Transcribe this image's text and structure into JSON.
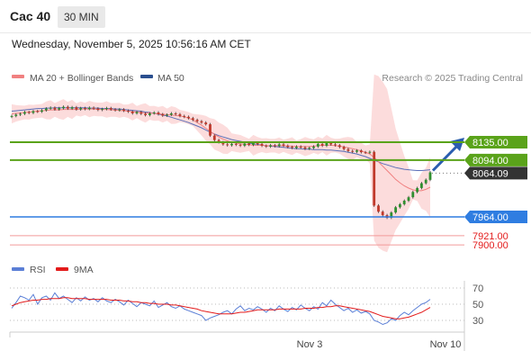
{
  "header": {
    "title": "Cac 40",
    "interval": "30 MIN",
    "datetime": "Wednesday, November 5, 2025 10:56:16 AM CET"
  },
  "legend": {
    "ma20_label": "MA 20 + Bollinger Bands",
    "ma50_label": "MA 50",
    "copyright": "Research © 2025 Trading Central",
    "rsi_label": "RSI",
    "rsi_ma_label": "9MA"
  },
  "colors": {
    "green_level": "#5aa31a",
    "blue_level": "#2f7de1",
    "red_level": "#e31b1b",
    "current_price_bg": "#333333",
    "band_fill": "#fbd6d6",
    "ma20": "#f08080",
    "ma50": "#5b6fb8",
    "candle_up": "#2f8f2f",
    "candle_down": "#c0392b",
    "arrow": "#2a5db0",
    "rsi_line": "#5b7fd6",
    "rsi_ma_line": "#e31b1b"
  },
  "chart_data": [
    {
      "type": "line",
      "subtype": "candlestick",
      "title": "Cac 40",
      "ylim": [
        7880,
        8250
      ],
      "x_tick_labels": [
        "Nov 3",
        "Nov 10"
      ],
      "price_levels": [
        {
          "value": 8135.0,
          "label": "8135.00",
          "kind": "resistance"
        },
        {
          "value": 8094.0,
          "label": "8094.00",
          "kind": "resistance"
        },
        {
          "value": 8064.09,
          "label": "8064.09",
          "kind": "current"
        },
        {
          "value": 7964.0,
          "label": "7964.00",
          "kind": "pivot"
        },
        {
          "value": 7921.0,
          "label": "7921.00",
          "kind": "support"
        },
        {
          "value": 7900.0,
          "label": "7900.00",
          "kind": "support"
        }
      ],
      "series": [
        {
          "name": "MA 20 + Bollinger Bands"
        },
        {
          "name": "MA 50"
        }
      ],
      "close": [
        8195,
        8198,
        8200,
        8204,
        8202,
        8206,
        8205,
        8208,
        8212,
        8214,
        8210,
        8213,
        8216,
        8212,
        8215,
        8210,
        8213,
        8211,
        8214,
        8212,
        8209,
        8211,
        8213,
        8210,
        8208,
        8210,
        8207,
        8205,
        8201,
        8204,
        8200,
        8197,
        8201,
        8203,
        8199,
        8196,
        8198,
        8201,
        8199,
        8195,
        8193,
        8190,
        8186,
        8183,
        8180,
        8176,
        8150,
        8140,
        8135,
        8130,
        8128,
        8131,
        8129,
        8127,
        8132,
        8129,
        8134,
        8131,
        8127,
        8125,
        8128,
        8126,
        8130,
        8127,
        8124,
        8122,
        8125,
        8123,
        8120,
        8122,
        8125,
        8131,
        8127,
        8134,
        8130,
        8128,
        8124,
        8119,
        8115,
        8113,
        8116,
        8112,
        8111,
        8113,
        7990,
        7976,
        7968,
        7962,
        7974,
        7986,
        7993,
        8001,
        8009,
        8021,
        8030,
        8041,
        8049,
        8066
      ],
      "ma20": [
        8200,
        8201,
        8202,
        8203,
        8204,
        8205,
        8206,
        8207,
        8208,
        8209,
        8209,
        8209,
        8210,
        8210,
        8210,
        8210,
        8211,
        8211,
        8211,
        8211,
        8210,
        8210,
        8210,
        8209,
        8209,
        8208,
        8207,
        8206,
        8205,
        8204,
        8203,
        8202,
        8202,
        8201,
        8200,
        8199,
        8198,
        8197,
        8196,
        8195,
        8193,
        8190,
        8186,
        8180,
        8174,
        8167,
        8160,
        8153,
        8147,
        8142,
        8138,
        8135,
        8133,
        8131,
        8130,
        8129,
        8128,
        8128,
        8128,
        8127,
        8127,
        8127,
        8127,
        8127,
        8126,
        8126,
        8125,
        8125,
        8125,
        8125,
        8126,
        8127,
        8128,
        8128,
        8128,
        8127,
        8126,
        8124,
        8122,
        8120,
        8118,
        8115,
        8112,
        8108,
        8100,
        8090,
        8080,
        8070,
        8060,
        8050,
        8042,
        8035,
        8030,
        8026,
        8024,
        8024,
        8027,
        8032
      ],
      "ma50": [
        8206,
        8207,
        8208,
        8209,
        8210,
        8211,
        8212,
        8212,
        8213,
        8213,
        8214,
        8214,
        8214,
        8214,
        8214,
        8214,
        8214,
        8214,
        8213,
        8213,
        8213,
        8212,
        8212,
        8212,
        8211,
        8211,
        8210,
        8209,
        8208,
        8207,
        8206,
        8204,
        8203,
        8201,
        8199,
        8197,
        8195,
        8192,
        8189,
        8186,
        8183,
        8180,
        8176,
        8172,
        8168,
        8163,
        8158,
        8154,
        8150,
        8147,
        8144,
        8141,
        8139,
        8137,
        8135,
        8133,
        8131,
        8130,
        8128,
        8127,
        8126,
        8125,
        8124,
        8123,
        8122,
        8121,
        8120,
        8120,
        8119,
        8119,
        8118,
        8118,
        8118,
        8117,
        8117,
        8116,
        8115,
        8114,
        8112,
        8110,
        8108,
        8105,
        8102,
        8098,
        8094,
        8090,
        8086,
        8083,
        8080,
        8077,
        8075,
        8073,
        8072,
        8071,
        8070,
        8070,
        8071,
        8072
      ]
    },
    {
      "type": "line",
      "title": "RSI",
      "ylim": [
        20,
        80
      ],
      "y_tick_labels": [
        "70",
        "50",
        "30"
      ],
      "series": [
        {
          "name": "RSI",
          "values": [
            45,
            52,
            60,
            58,
            55,
            62,
            50,
            58,
            60,
            55,
            64,
            57,
            60,
            56,
            52,
            58,
            54,
            59,
            55,
            57,
            53,
            58,
            54,
            52,
            56,
            53,
            49,
            55,
            51,
            47,
            52,
            50,
            48,
            54,
            46,
            49,
            52,
            47,
            45,
            48,
            44,
            42,
            40,
            38,
            36,
            30,
            33,
            35,
            37,
            40,
            42,
            38,
            44,
            48,
            42,
            45,
            43,
            47,
            44,
            40,
            45,
            42,
            48,
            44,
            41,
            46,
            43,
            49,
            45,
            42,
            47,
            44,
            52,
            48,
            55,
            50,
            46,
            42,
            45,
            40,
            43,
            39,
            41,
            38,
            30,
            28,
            25,
            27,
            32,
            30,
            36,
            40,
            37,
            42,
            46,
            50,
            52,
            56
          ]
        },
        {
          "name": "9MA",
          "values": [
            48,
            50,
            52,
            53,
            54,
            55,
            55,
            56,
            56,
            57,
            57,
            57,
            58,
            58,
            57,
            57,
            57,
            57,
            56,
            56,
            56,
            56,
            56,
            55,
            55,
            55,
            54,
            54,
            53,
            53,
            52,
            52,
            51,
            51,
            50,
            50,
            50,
            49,
            49,
            48,
            47,
            46,
            45,
            44,
            42,
            41,
            40,
            39,
            38,
            38,
            38,
            38,
            39,
            40,
            40,
            41,
            42,
            43,
            43,
            43,
            43,
            43,
            44,
            44,
            44,
            44,
            44,
            44,
            45,
            45,
            45,
            46,
            46,
            47,
            47,
            48,
            48,
            47,
            46,
            45,
            44,
            43,
            42,
            41,
            39,
            37,
            35,
            34,
            33,
            32,
            32,
            33,
            34,
            36,
            38,
            40,
            43,
            46
          ]
        }
      ],
      "x_tick_labels": [
        "Nov 3",
        "Nov 10"
      ]
    }
  ]
}
